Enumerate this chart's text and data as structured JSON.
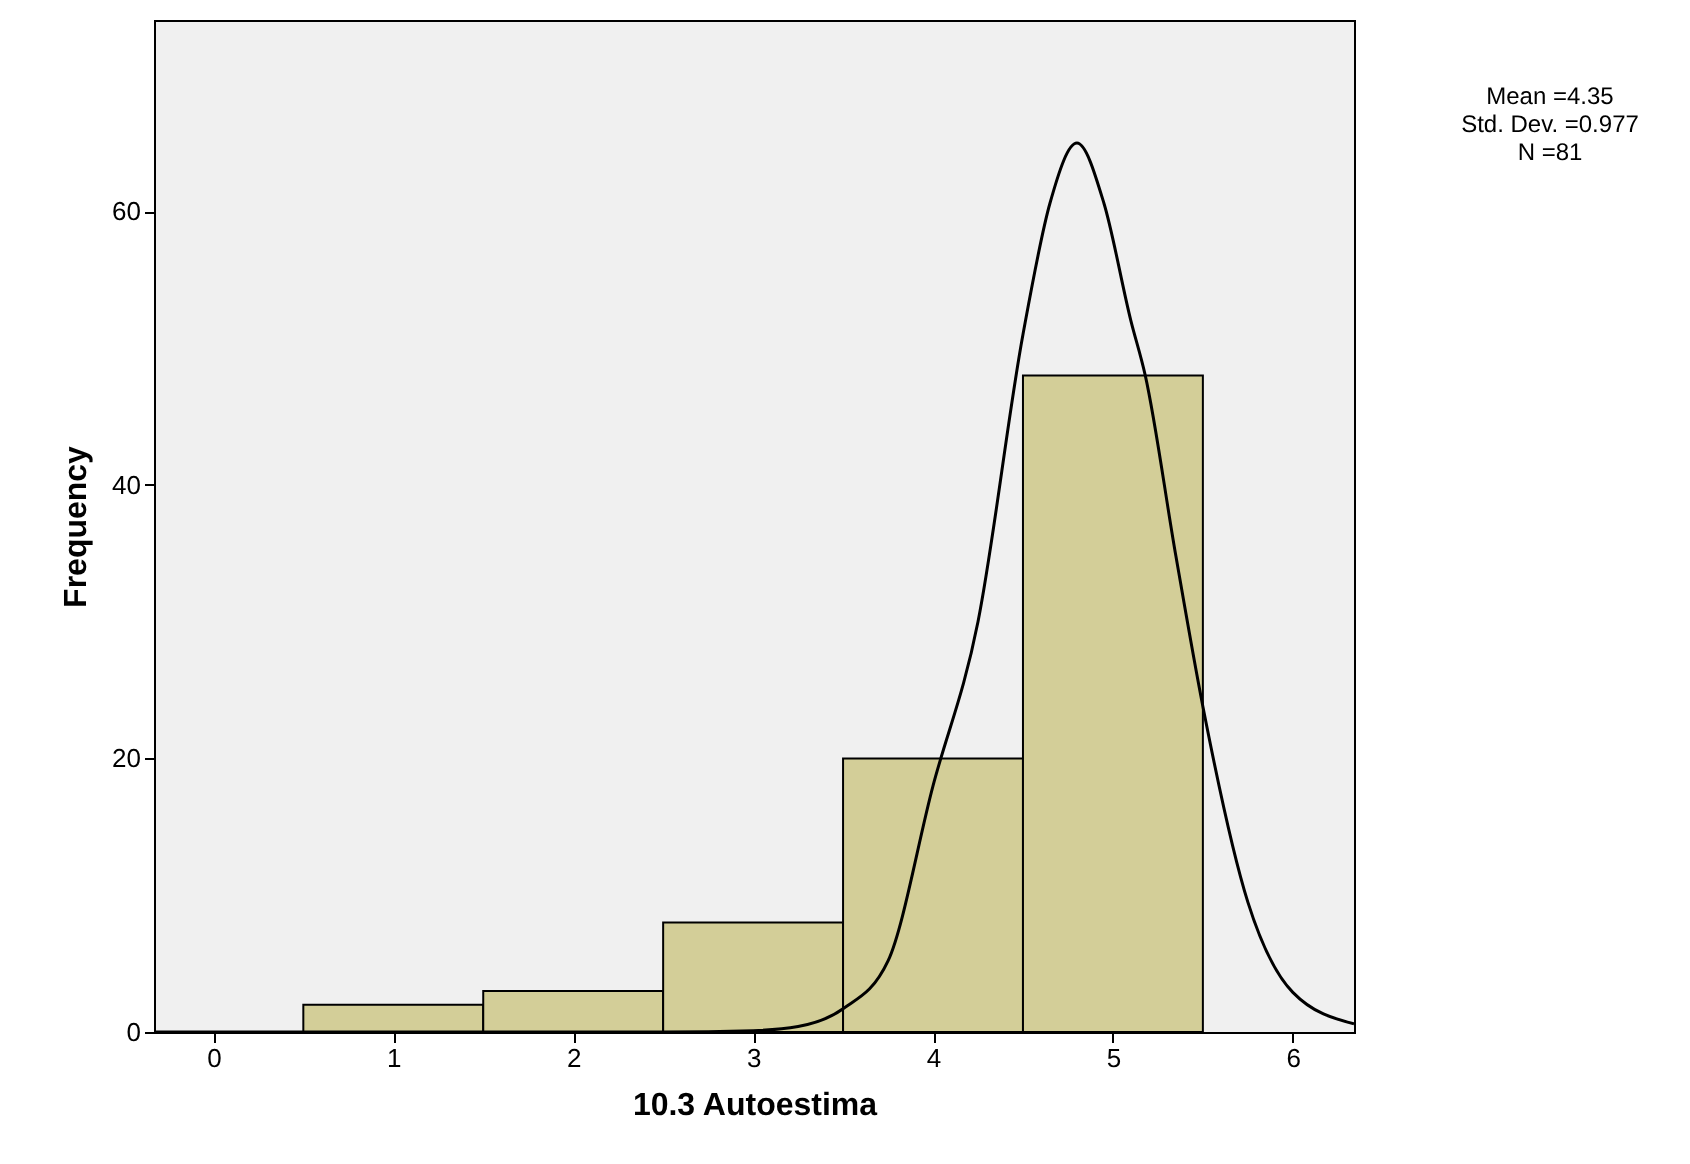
{
  "chart_data": {
    "type": "histogram",
    "xlabel": "10.3 Autoestima",
    "ylabel": "Frequency",
    "bins": [
      0.5,
      1.5,
      2.5,
      3.5,
      4.5,
      5.5
    ],
    "values": [
      2,
      3,
      8,
      20,
      48
    ],
    "color": "#d3ce98",
    "series": [
      {
        "type": "line",
        "color": "#000000",
        "x": [
          -0.33,
          2.5,
          3.0,
          3.25,
          3.5,
          3.75,
          4.0,
          4.25,
          4.5,
          4.65,
          4.8,
          4.95,
          5.1,
          5.18,
          5.35,
          5.5,
          5.75,
          6.0,
          6.34
        ],
        "values": [
          0,
          0,
          0.1,
          0.4,
          1.7,
          5.2,
          18,
          30,
          51,
          60.6,
          65,
          60.6,
          52,
          48,
          34.8,
          23.8,
          9.5,
          2.9,
          0.6
        ]
      }
    ],
    "xlim": [
      -0.33,
      6.34
    ],
    "ylim": [
      0,
      74
    ],
    "xticks": [
      0,
      1,
      2,
      3,
      4,
      5,
      6
    ],
    "yticks": [
      0,
      20,
      40,
      60
    ],
    "grid": false,
    "marker": "none",
    "line_style": "solid",
    "annotations": [
      "Mean =4.35",
      "Std. Dev. =0.977",
      "N =81"
    ]
  }
}
